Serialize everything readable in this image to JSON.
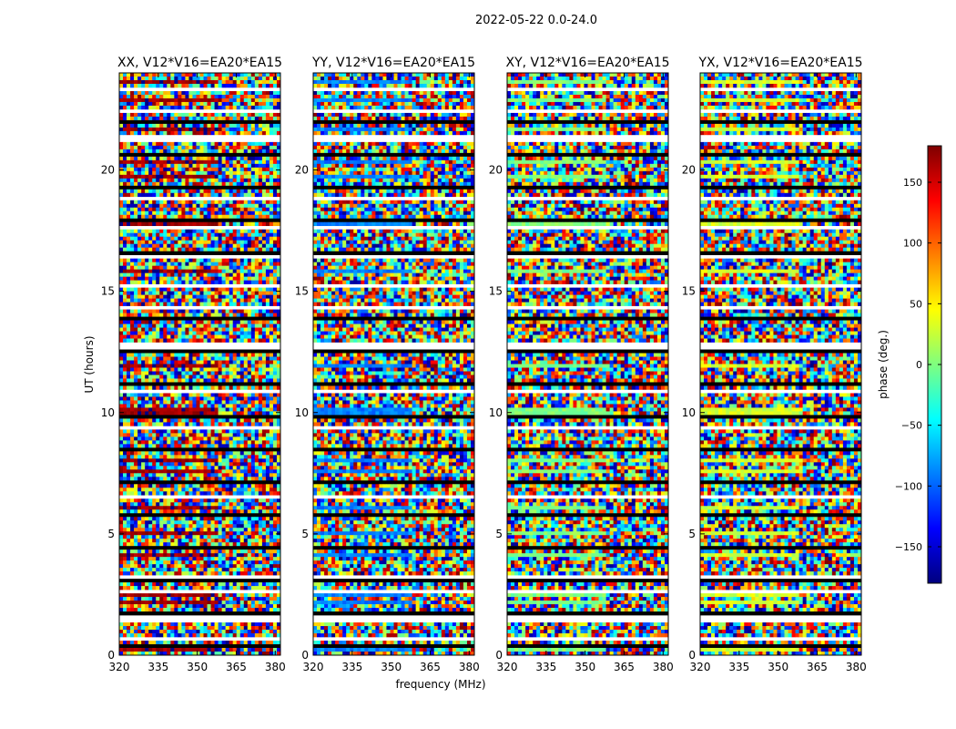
{
  "figure_title": "2022-05-22 0.0-24.0",
  "ylabel": "UT (hours)",
  "xlabel": "frequency (MHz)",
  "colorbar_label": "phase (deg.)",
  "colormap": [
    "#00007f",
    "#0000ff",
    "#007fff",
    "#00ffff",
    "#7fff7f",
    "#ffff00",
    "#ff7f00",
    "#ff0000",
    "#7f0000"
  ],
  "chart_data": {
    "type": "heatmap",
    "title": "2022-05-22 0.0-24.0",
    "xlabel": "frequency (MHz)",
    "ylabel": "UT (hours)",
    "xlim": [
      320,
      382
    ],
    "ylim": [
      0,
      24
    ],
    "x_ticks": [
      320,
      335,
      350,
      365,
      380
    ],
    "y_ticks": [
      0,
      5,
      10,
      15,
      20
    ],
    "colorbar": {
      "label": "phase (deg.)",
      "range": [
        -180,
        180
      ],
      "ticks": [
        150,
        100,
        50,
        0,
        -50,
        -100,
        -150
      ]
    },
    "panels": [
      {
        "title": "XX, V12*V16=EA20*EA15",
        "phase_bias": 170
      },
      {
        "title": "YY, V12*V16=EA20*EA15",
        "phase_bias": -90
      },
      {
        "title": "XY, V12*V16=EA20*EA15",
        "phase_bias": 0
      },
      {
        "title": "YX, V12*V16=EA20*EA15",
        "phase_bias": 30
      }
    ],
    "flagged_time_ranges_hours": [
      [
        0.55,
        0.75
      ],
      [
        1.35,
        1.6
      ],
      [
        2.5,
        2.75
      ],
      [
        3.2,
        3.35
      ],
      [
        4.3,
        4.4
      ],
      [
        6.45,
        6.6
      ],
      [
        7.0,
        7.05
      ],
      [
        8.5,
        8.6
      ],
      [
        9.35,
        9.45
      ],
      [
        10.8,
        11.0
      ],
      [
        12.6,
        12.95
      ],
      [
        14.3,
        14.4
      ],
      [
        15.2,
        15.3
      ],
      [
        16.4,
        16.55
      ],
      [
        17.5,
        17.65
      ],
      [
        18.7,
        18.9
      ],
      [
        19.6,
        19.7
      ],
      [
        21.2,
        21.4
      ],
      [
        22.3,
        22.5
      ],
      [
        23.3,
        23.45
      ]
    ]
  }
}
